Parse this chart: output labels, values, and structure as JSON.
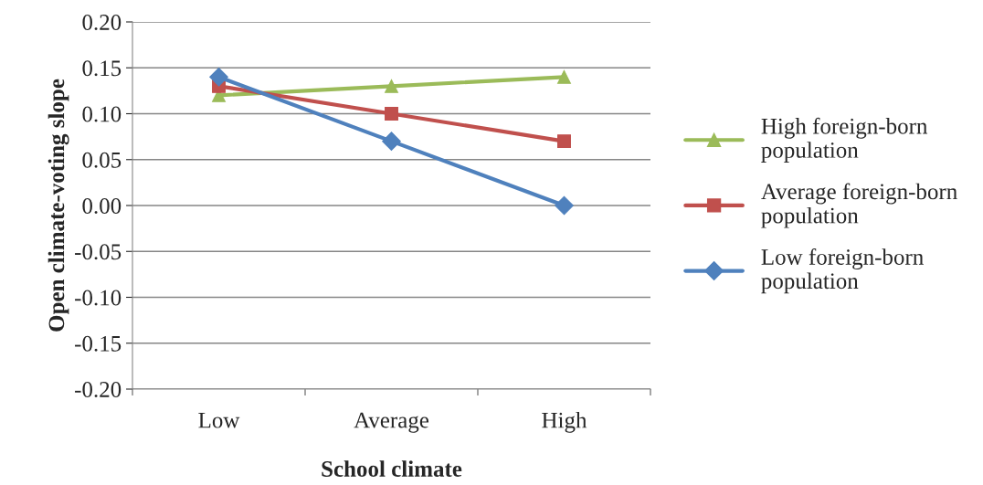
{
  "chart_data": {
    "type": "line",
    "xlabel": "School climate",
    "ylabel": "Open climate-voting slope",
    "categories": [
      "Low",
      "Average",
      "High"
    ],
    "series": [
      {
        "name": "High foreign-born\npopulation",
        "color": "#9bbb59",
        "marker": "triangle",
        "values": [
          0.12,
          0.13,
          0.14
        ]
      },
      {
        "name": "Average foreign-born\npopulation",
        "color": "#c0504d",
        "marker": "square",
        "values": [
          0.13,
          0.1,
          0.07
        ]
      },
      {
        "name": "Low foreign-born\npopulation",
        "color": "#4f81bd",
        "marker": "diamond",
        "values": [
          0.14,
          0.07,
          0.0
        ]
      }
    ],
    "ylim": [
      -0.2,
      0.2
    ],
    "yticks": [
      {
        "value": -0.2,
        "label": "-0.20"
      },
      {
        "value": -0.15,
        "label": "-0.15"
      },
      {
        "value": -0.1,
        "label": "-0.10"
      },
      {
        "value": -0.05,
        "label": "-0.05"
      },
      {
        "value": 0,
        "label": "0.00"
      },
      {
        "value": 0.05,
        "label": "0.05"
      },
      {
        "value": 0.1,
        "label": "0.10"
      },
      {
        "value": 0.15,
        "label": "0.15"
      },
      {
        "value": 0.2,
        "label": "0.20"
      }
    ],
    "grid": "y",
    "legend": "right"
  }
}
